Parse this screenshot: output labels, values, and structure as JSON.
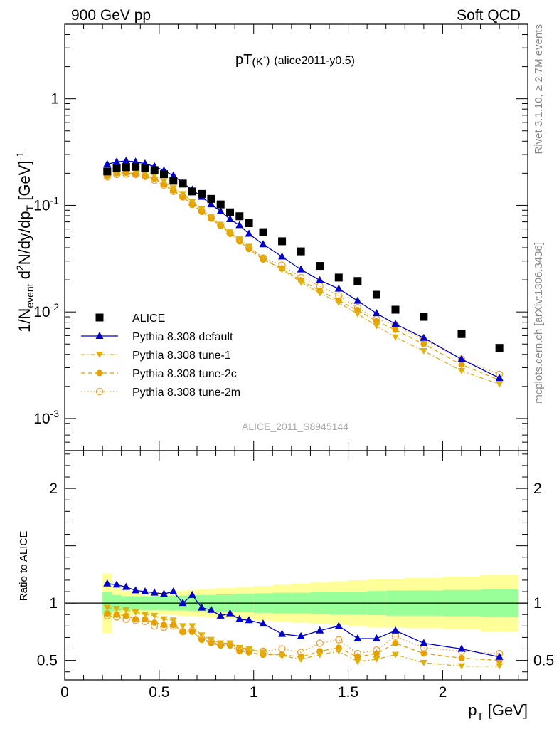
{
  "header": {
    "left": "900 GeV pp",
    "right": "Soft QCD"
  },
  "side_labels": {
    "top": "Rivet 3.1.10, ≥ 2.7M events",
    "bottom": "mcplots.cern.ch [arXiv:1306.3436]"
  },
  "analysis_label": "ALICE_2011_S8945144",
  "plot_title": {
    "main": "pT",
    "paren": "(K",
    "sup": "-",
    "close": ")",
    "tag": "(alice2011-y0.5)"
  },
  "y_label_top": {
    "a": "1/N",
    "a_sub": "event",
    "b": " d",
    "b_sup": "2",
    "c": "N/dy/dp",
    "c_sub": "T",
    "d": " [GeV]",
    "d_sup": "-1"
  },
  "y_label_bottom": "Ratio to ALICE",
  "x_label": {
    "main": "p",
    "sub": "T",
    "unit": " [GeV]"
  },
  "colors": {
    "data": "#000000",
    "default": "#0000cc",
    "tunes": "#e8a800",
    "tune1": "#e0b010",
    "tune2c": "#e6a000",
    "tune2m": "#f0a030",
    "band_inner": "#99ff99",
    "band_outer": "#ffff99"
  },
  "chart_data": [
    {
      "type": "scatter",
      "yscale": "log",
      "xlim": [
        0,
        2.45
      ],
      "ylim": [
        0.0005,
        5
      ],
      "y_tick_labels": [
        {
          "value": 0.001,
          "base": "10",
          "exp": "-3"
        },
        {
          "value": 0.01,
          "base": "10",
          "exp": "-2"
        },
        {
          "value": 0.1,
          "base": "10",
          "exp": "-1"
        },
        {
          "value": 1,
          "base": "1",
          "exp": ""
        }
      ],
      "legend_position": "lower-left",
      "series": [
        {
          "name": "ALICE",
          "marker": "square",
          "x": [
            0.225,
            0.275,
            0.325,
            0.375,
            0.425,
            0.475,
            0.525,
            0.575,
            0.625,
            0.675,
            0.725,
            0.775,
            0.825,
            0.875,
            0.925,
            0.975,
            1.05,
            1.15,
            1.25,
            1.35,
            1.45,
            1.55,
            1.65,
            1.75,
            1.9,
            2.1,
            2.3
          ],
          "y": [
            0.208,
            0.222,
            0.228,
            0.23,
            0.222,
            0.214,
            0.196,
            0.17,
            0.16,
            0.135,
            0.128,
            0.115,
            0.102,
            0.086,
            0.079,
            0.068,
            0.056,
            0.046,
            0.037,
            0.027,
            0.021,
            0.0195,
            0.0145,
            0.0105,
            0.009,
            0.0062,
            0.0046
          ]
        },
        {
          "name": "Pythia 8.308 default",
          "marker": "triangle-up",
          "line": "solid",
          "x": [
            0.225,
            0.275,
            0.325,
            0.375,
            0.425,
            0.475,
            0.525,
            0.575,
            0.625,
            0.675,
            0.725,
            0.775,
            0.825,
            0.875,
            0.925,
            0.975,
            1.05,
            1.15,
            1.25,
            1.35,
            1.45,
            1.55,
            1.65,
            1.75,
            1.9,
            2.1,
            2.3
          ],
          "y": [
            0.243,
            0.256,
            0.261,
            0.256,
            0.246,
            0.232,
            0.212,
            0.19,
            0.162,
            0.14,
            0.12,
            0.102,
            0.088,
            0.074,
            0.065,
            0.054,
            0.043,
            0.033,
            0.025,
            0.0198,
            0.0165,
            0.0127,
            0.0097,
            0.0077,
            0.0057,
            0.0036,
            0.0024
          ]
        },
        {
          "name": "Pythia 8.308 tune-1",
          "marker": "triangle-down",
          "line": "dash-dot",
          "x": [
            0.225,
            0.275,
            0.325,
            0.375,
            0.425,
            0.475,
            0.525,
            0.575,
            0.625,
            0.675,
            0.725,
            0.775,
            0.825,
            0.875,
            0.925,
            0.975,
            1.05,
            1.15,
            1.25,
            1.35,
            1.45,
            1.55,
            1.65,
            1.75,
            1.9,
            2.1,
            2.3
          ],
          "y": [
            0.2,
            0.212,
            0.215,
            0.212,
            0.2,
            0.19,
            0.168,
            0.145,
            0.128,
            0.108,
            0.092,
            0.078,
            0.066,
            0.056,
            0.048,
            0.041,
            0.032,
            0.025,
            0.019,
            0.015,
            0.0122,
            0.0096,
            0.0074,
            0.0058,
            0.0043,
            0.0028,
            0.0021
          ]
        },
        {
          "name": "Pythia 8.308 tune-2c",
          "marker": "circle",
          "line": "dashed",
          "x": [
            0.225,
            0.275,
            0.325,
            0.375,
            0.425,
            0.475,
            0.525,
            0.575,
            0.625,
            0.675,
            0.725,
            0.775,
            0.825,
            0.875,
            0.925,
            0.975,
            1.05,
            1.15,
            1.25,
            1.35,
            1.45,
            1.55,
            1.65,
            1.75,
            1.9,
            2.1,
            2.3
          ],
          "y": [
            0.19,
            0.2,
            0.202,
            0.198,
            0.19,
            0.178,
            0.158,
            0.138,
            0.12,
            0.101,
            0.087,
            0.075,
            0.064,
            0.054,
            0.046,
            0.039,
            0.031,
            0.0255,
            0.0198,
            0.0158,
            0.0128,
            0.0104,
            0.0082,
            0.0068,
            0.005,
            0.0032,
            0.0023
          ]
        },
        {
          "name": "Pythia 8.308 tune-2m",
          "marker": "open-circle",
          "line": "dotted",
          "x": [
            0.225,
            0.275,
            0.325,
            0.375,
            0.425,
            0.475,
            0.525,
            0.575,
            0.625,
            0.675,
            0.725,
            0.775,
            0.825,
            0.875,
            0.925,
            0.975,
            1.05,
            1.15,
            1.25,
            1.35,
            1.45,
            1.55,
            1.65,
            1.75,
            1.9,
            2.1,
            2.3
          ],
          "y": [
            0.185,
            0.195,
            0.197,
            0.195,
            0.187,
            0.172,
            0.155,
            0.135,
            0.12,
            0.102,
            0.088,
            0.076,
            0.065,
            0.055,
            0.047,
            0.04,
            0.032,
            0.0275,
            0.021,
            0.0175,
            0.0142,
            0.011,
            0.0086,
            0.0075,
            0.0055,
            0.0036,
            0.0026
          ]
        }
      ]
    },
    {
      "type": "scatter",
      "xlim": [
        0,
        2.45
      ],
      "ylim": [
        0.33,
        2.33
      ],
      "ylabel": "Ratio to ALICE",
      "xlabel": "pT [GeV]",
      "y_tick_labels": [
        {
          "value": 0.5,
          "label": "0.5"
        },
        {
          "value": 1,
          "label": "1"
        },
        {
          "value": 2,
          "label": "2"
        }
      ],
      "x_tick_labels": [
        {
          "value": 0,
          "label": "0"
        },
        {
          "value": 0.5,
          "label": "0.5"
        },
        {
          "value": 1,
          "label": "1"
        },
        {
          "value": 1.5,
          "label": "1.5"
        },
        {
          "value": 2,
          "label": "2"
        }
      ],
      "reference_line": 1,
      "bands": {
        "edges": [
          0.2,
          0.25,
          0.3,
          0.35,
          0.4,
          0.45,
          0.5,
          0.55,
          0.6,
          0.65,
          0.7,
          0.75,
          0.8,
          0.85,
          0.9,
          0.95,
          1.0,
          1.1,
          1.2,
          1.3,
          1.4,
          1.5,
          1.6,
          1.7,
          1.8,
          2.0,
          2.2,
          2.4
        ],
        "inner": [
          0.1,
          0.07,
          0.06,
          0.06,
          0.06,
          0.06,
          0.06,
          0.065,
          0.065,
          0.07,
          0.07,
          0.07,
          0.075,
          0.075,
          0.08,
          0.08,
          0.085,
          0.09,
          0.09,
          0.095,
          0.1,
          0.1,
          0.105,
          0.11,
          0.11,
          0.115,
          0.12
        ],
        "outer": [
          0.26,
          0.13,
          0.11,
          0.1,
          0.1,
          0.1,
          0.1,
          0.105,
          0.11,
          0.115,
          0.12,
          0.125,
          0.13,
          0.13,
          0.14,
          0.14,
          0.15,
          0.16,
          0.17,
          0.18,
          0.19,
          0.2,
          0.21,
          0.21,
          0.22,
          0.23,
          0.25
        ]
      },
      "series": [
        {
          "name": "Pythia 8.308 default",
          "marker": "triangle-up",
          "line": "solid",
          "x": [
            0.225,
            0.275,
            0.325,
            0.375,
            0.425,
            0.475,
            0.525,
            0.575,
            0.625,
            0.675,
            0.725,
            0.775,
            0.825,
            0.875,
            0.925,
            0.975,
            1.05,
            1.15,
            1.25,
            1.35,
            1.45,
            1.55,
            1.65,
            1.75,
            1.9,
            2.1,
            2.3
          ],
          "y": [
            1.17,
            1.16,
            1.14,
            1.11,
            1.1,
            1.09,
            1.08,
            1.1,
            1.0,
            1.07,
            0.96,
            0.94,
            0.89,
            0.91,
            0.86,
            0.85,
            0.82,
            0.73,
            0.71,
            0.76,
            0.8,
            0.69,
            0.69,
            0.76,
            0.65,
            0.6,
            0.53
          ]
        },
        {
          "name": "Pythia 8.308 tune-1",
          "marker": "triangle-down",
          "line": "dash-dot",
          "x": [
            0.225,
            0.275,
            0.325,
            0.375,
            0.425,
            0.475,
            0.525,
            0.575,
            0.625,
            0.675,
            0.725,
            0.775,
            0.825,
            0.875,
            0.925,
            0.975,
            1.05,
            1.15,
            1.25,
            1.35,
            1.45,
            1.55,
            1.65,
            1.75,
            1.9,
            2.1,
            2.3
          ],
          "y": [
            0.96,
            0.95,
            0.94,
            0.92,
            0.9,
            0.89,
            0.86,
            0.85,
            0.8,
            0.8,
            0.72,
            0.68,
            0.65,
            0.65,
            0.61,
            0.6,
            0.57,
            0.54,
            0.51,
            0.55,
            0.58,
            0.49,
            0.51,
            0.55,
            0.48,
            0.45,
            0.45
          ]
        },
        {
          "name": "Pythia 8.308 tune-2c",
          "marker": "circle",
          "line": "dashed",
          "x": [
            0.225,
            0.275,
            0.325,
            0.375,
            0.425,
            0.475,
            0.525,
            0.575,
            0.625,
            0.675,
            0.725,
            0.775,
            0.825,
            0.875,
            0.925,
            0.975,
            1.05,
            1.15,
            1.25,
            1.35,
            1.45,
            1.55,
            1.65,
            1.75,
            1.9,
            2.1,
            2.3
          ],
          "y": [
            0.91,
            0.9,
            0.89,
            0.86,
            0.86,
            0.83,
            0.81,
            0.81,
            0.75,
            0.75,
            0.68,
            0.65,
            0.63,
            0.63,
            0.58,
            0.57,
            0.55,
            0.55,
            0.53,
            0.58,
            0.61,
            0.53,
            0.56,
            0.65,
            0.56,
            0.52,
            0.5
          ]
        },
        {
          "name": "Pythia 8.308 tune-2m",
          "marker": "open-circle",
          "line": "dotted",
          "x": [
            0.225,
            0.275,
            0.325,
            0.375,
            0.425,
            0.475,
            0.525,
            0.575,
            0.625,
            0.675,
            0.725,
            0.775,
            0.825,
            0.875,
            0.925,
            0.975,
            1.05,
            1.15,
            1.25,
            1.35,
            1.45,
            1.55,
            1.65,
            1.75,
            1.9,
            2.1,
            2.3
          ],
          "y": [
            0.89,
            0.88,
            0.86,
            0.85,
            0.84,
            0.8,
            0.79,
            0.8,
            0.75,
            0.76,
            0.69,
            0.66,
            0.64,
            0.64,
            0.6,
            0.59,
            0.58,
            0.6,
            0.57,
            0.65,
            0.68,
            0.56,
            0.59,
            0.71,
            0.61,
            0.58,
            0.56
          ]
        }
      ]
    }
  ]
}
